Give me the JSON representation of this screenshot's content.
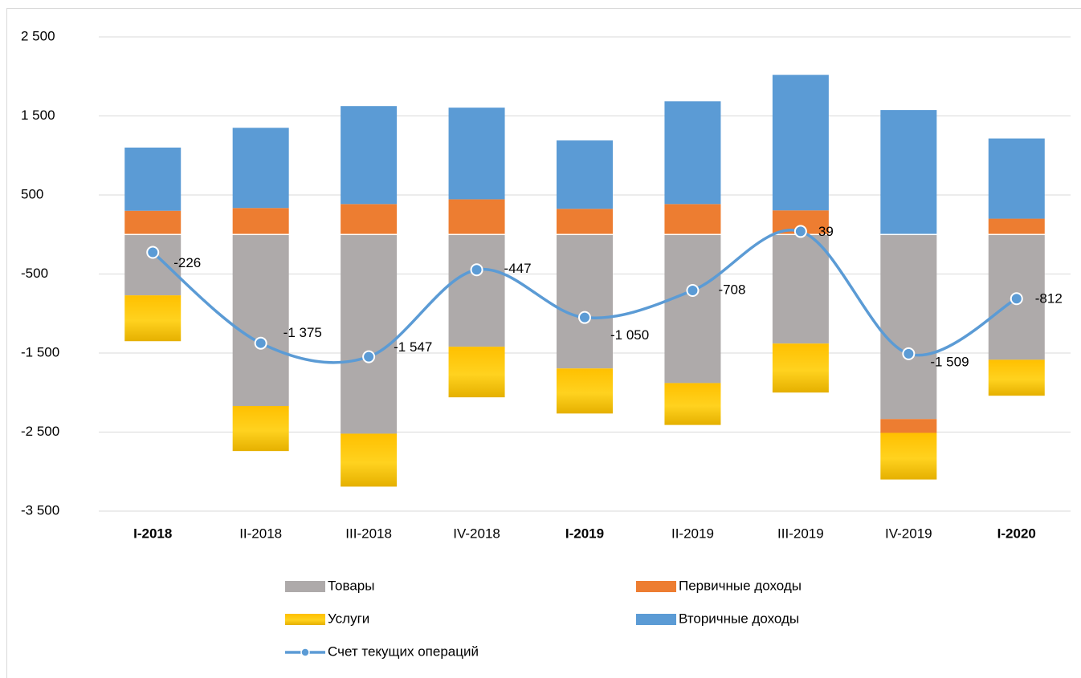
{
  "chart_data": {
    "type": "stacked_bar_line",
    "categories": [
      "I-2018",
      "II-2018",
      "III-2018",
      "IV-2018",
      "I-2019",
      "II-2019",
      "III-2019",
      "IV-2019",
      "I-2020"
    ],
    "category_bold": [
      true,
      false,
      false,
      false,
      true,
      false,
      false,
      false,
      true
    ],
    "series": [
      {
        "name": "Товары",
        "type": "bar",
        "color": "#aeaaaa",
        "values": [
          -770,
          -2170,
          -2520,
          -1420,
          -1695,
          -1880,
          -1380,
          -2335,
          -1585
        ]
      },
      {
        "name": "Первичные доходы",
        "type": "bar",
        "color": "#ed7d31",
        "values": [
          300,
          335,
          385,
          445,
          325,
          385,
          305,
          -175,
          200
        ]
      },
      {
        "name": "Услуги",
        "type": "bar",
        "color": "#ffc000",
        "values": [
          -580,
          -570,
          -670,
          -640,
          -570,
          -530,
          -620,
          -590,
          -455
        ]
      },
      {
        "name": "Вторичные доходы",
        "type": "bar",
        "color": "#5b9bd5",
        "values": [
          800,
          1015,
          1240,
          1160,
          865,
          1300,
          1715,
          1575,
          1015
        ]
      },
      {
        "name": "Счет текущих операций",
        "type": "line",
        "color": "#5b9bd5",
        "values": [
          -226,
          -1375,
          -1547,
          -447,
          -1050,
          -708,
          39,
          -1509,
          -812
        ],
        "value_labels": [
          "-226",
          "-1 375",
          "-1 547",
          "-447",
          "-1 050",
          "-708",
          "39",
          "-1 509",
          "-812"
        ]
      }
    ],
    "ylim": [
      -3500,
      2500
    ],
    "yticks": [
      {
        "value": 2500,
        "label": "2 500"
      },
      {
        "value": 1500,
        "label": "1 500"
      },
      {
        "value": 500,
        "label": "500"
      },
      {
        "value": -500,
        "label": "-500"
      },
      {
        "value": -1500,
        "label": "-1 500"
      },
      {
        "value": -2500,
        "label": "-2 500"
      },
      {
        "value": -3500,
        "label": "-3 500"
      }
    ],
    "grid": true,
    "legend": "bottom"
  }
}
